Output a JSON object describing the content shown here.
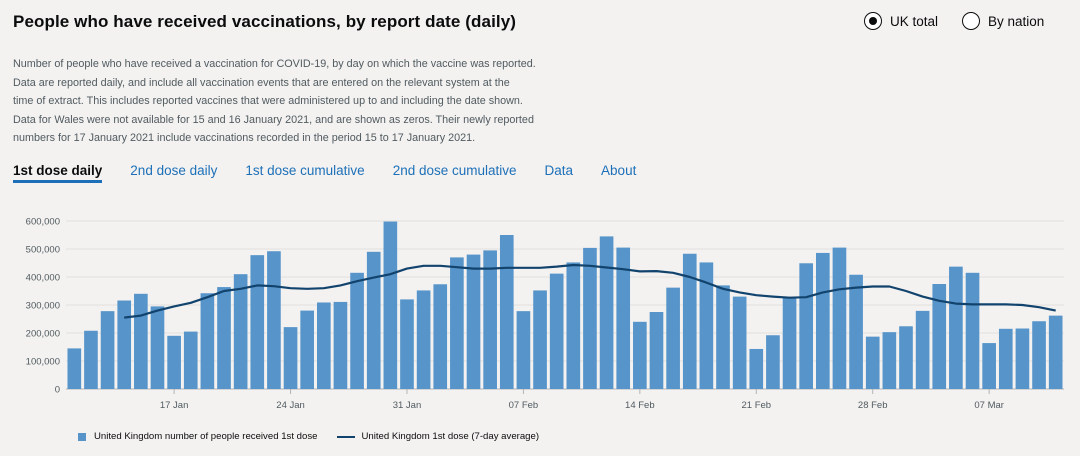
{
  "title": "People who have received vaccinations, by report date (daily)",
  "radios": [
    {
      "label": "UK total",
      "selected": true
    },
    {
      "label": "By nation",
      "selected": false
    }
  ],
  "description": [
    "Number of people who have received a vaccination for COVID-19, by day on which the vaccine was reported.",
    "Data are reported daily, and include all vaccination events that are entered on the relevant system at the",
    "time of extract. This includes reported vaccines that were administered up to and including the date shown.",
    "Data for Wales were not available for 15 and 16 January 2021, and are shown as zeros. Their newly reported",
    "numbers for 17 January 2021 include vaccinations recorded in the period 15 to 17 January 2021."
  ],
  "tabs": [
    "1st dose daily",
    "2nd dose daily",
    "1st dose cumulative",
    "2nd dose cumulative",
    "Data",
    "About"
  ],
  "legend": {
    "bars": "United Kingdom number of people received 1st dose",
    "line": "United Kingdom 1st dose (7-day average)"
  },
  "colors": {
    "bar": "#5694ca",
    "line": "#12436d",
    "grid": "#e0e0e0"
  },
  "chart_data": {
    "type": "bar",
    "ylim": [
      0,
      600000
    ],
    "yticks": [
      0,
      100000,
      200000,
      300000,
      400000,
      500000,
      600000
    ],
    "ytick_labels": [
      "0",
      "100,000",
      "200,000",
      "300,000",
      "400,000",
      "500,000",
      "600,000"
    ],
    "xtick_labels": [
      {
        "index": 6,
        "label": "17 Jan"
      },
      {
        "index": 13,
        "label": "24 Jan"
      },
      {
        "index": 20,
        "label": "31 Jan"
      },
      {
        "index": 27,
        "label": "07 Feb"
      },
      {
        "index": 34,
        "label": "14 Feb"
      },
      {
        "index": 41,
        "label": "21 Feb"
      },
      {
        "index": 48,
        "label": "28 Feb"
      },
      {
        "index": 55,
        "label": "07 Mar"
      }
    ],
    "series": [
      {
        "name": "United Kingdom number of people received 1st dose",
        "type": "bar",
        "values": [
          145000,
          208000,
          278000,
          316000,
          340000,
          295000,
          190000,
          205000,
          342000,
          364000,
          410000,
          478000,
          492000,
          221000,
          280000,
          309000,
          311000,
          415000,
          490000,
          598000,
          320000,
          352000,
          374000,
          470000,
          480000,
          495000,
          550000,
          278000,
          352000,
          412000,
          452000,
          504000,
          545000,
          505000,
          240000,
          275000,
          362000,
          483000,
          452000,
          370000,
          330000,
          143000,
          192000,
          327000,
          449000,
          486000,
          505000,
          408000,
          187000,
          203000,
          224000,
          279000,
          375000,
          437000,
          415000,
          164000,
          215000,
          216000,
          242000,
          262000
        ]
      },
      {
        "name": "United Kingdom 1st dose (7-day average)",
        "type": "line",
        "start_index": 3,
        "values": [
          255000,
          262000,
          280000,
          295000,
          308000,
          328000,
          350000,
          358000,
          370000,
          367000,
          360000,
          358000,
          360000,
          370000,
          385000,
          398000,
          410000,
          430000,
          440000,
          440000,
          435000,
          430000,
          430000,
          433000,
          433000,
          433000,
          437000,
          443000,
          440000,
          434000,
          428000,
          420000,
          421000,
          415000,
          400000,
          380000,
          358000,
          345000,
          335000,
          330000,
          326000,
          328000,
          345000,
          356000,
          362000,
          366000,
          366000,
          350000,
          330000,
          315000,
          305000,
          302000,
          302000,
          302000,
          300000,
          292000,
          280000
        ]
      }
    ]
  }
}
